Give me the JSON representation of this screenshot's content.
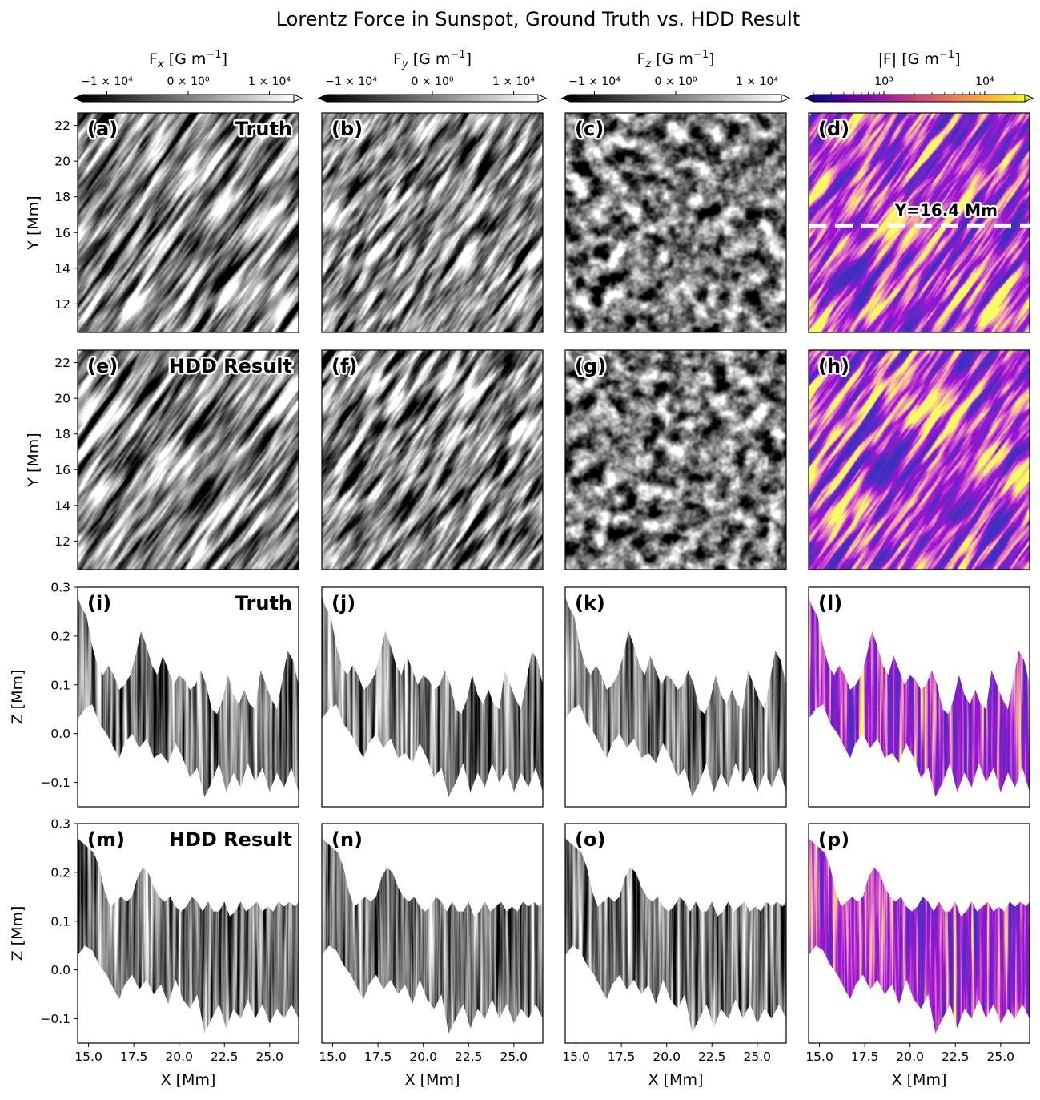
{
  "title": "Lorentz Force in Sunspot, Ground Truth vs. HDD Result",
  "colorbars": [
    {
      "label": "F",
      "sub": "x",
      "unit": " [G m",
      "exp": "−1",
      "close": "]",
      "scale": "gray",
      "ticks": [
        "−1 × 10⁴",
        "0 × 10⁰",
        "1 × 10⁴"
      ]
    },
    {
      "label": "F",
      "sub": "y",
      "unit": " [G m",
      "exp": "−1",
      "close": "]",
      "scale": "gray",
      "ticks": [
        "−1 × 10⁴",
        "0 × 10⁰",
        "1 × 10⁴"
      ]
    },
    {
      "label": "F",
      "sub": "z",
      "unit": " [G m",
      "exp": "−1",
      "close": "]",
      "scale": "gray",
      "ticks": [
        "−1 × 10⁴",
        "0 × 10⁰",
        "1 × 10⁴"
      ]
    },
    {
      "label": "|F|",
      "sub": "",
      "unit": " [G m",
      "exp": "−1",
      "close": "]",
      "scale": "plasma-log",
      "ticks": [
        "10³",
        "10⁴"
      ]
    }
  ],
  "colors": {
    "gray_dark": "#000000",
    "gray_light": "#ffffff",
    "plasma": [
      "#0d0887",
      "#5c01a6",
      "#9c179e",
      "#cc4778",
      "#ed7953",
      "#fdb42f",
      "#f0f921"
    ],
    "dashed_line": "#ffffff"
  },
  "panels": {
    "row_labels": [
      "Truth",
      "HDD Result",
      "Truth",
      "HDD Result"
    ],
    "letters": [
      [
        "(a)",
        "(b)",
        "(c)",
        "(d)"
      ],
      [
        "(e)",
        "(f)",
        "(g)",
        "(h)"
      ],
      [
        "(i)",
        "(j)",
        "(k)",
        "(l)"
      ],
      [
        "(m)",
        "(n)",
        "(o)",
        "(p)"
      ]
    ],
    "annotation": "Y=16.4 Mm"
  },
  "axes": {
    "xlabel": "X [Mm]",
    "ylabel_top": "Y [Mm]",
    "ylabel_bottom": "Z [Mm]",
    "xticks": [
      "15.0",
      "17.5",
      "20.0",
      "22.5",
      "25.0"
    ],
    "yticks_top": [
      "12",
      "14",
      "16",
      "18",
      "20",
      "22"
    ],
    "yticks_bottom": [
      "−0.1",
      "0.0",
      "0.1",
      "0.2",
      "0.3"
    ]
  },
  "chart_data": {
    "type": "heatmap",
    "x_range": [
      14.4,
      26.6
    ],
    "y_range": [
      10.4,
      22.7
    ],
    "z_range": [
      -0.15,
      0.3
    ],
    "slice_y": 16.4,
    "colorbar_gray_range": [
      -13000,
      13000
    ],
    "colorbar_log_range": [
      200,
      25000
    ],
    "surface_truth": [
      [
        14.4,
        0.28
      ],
      [
        14.6,
        0.26
      ],
      [
        14.9,
        0.24
      ],
      [
        15.2,
        0.18
      ],
      [
        15.5,
        0.14
      ],
      [
        15.8,
        0.12
      ],
      [
        16.1,
        0.14
      ],
      [
        16.4,
        0.12
      ],
      [
        16.7,
        0.09
      ],
      [
        17.0,
        0.1
      ],
      [
        17.3,
        0.12
      ],
      [
        17.6,
        0.16
      ],
      [
        17.9,
        0.21
      ],
      [
        18.2,
        0.18
      ],
      [
        18.5,
        0.14
      ],
      [
        18.8,
        0.12
      ],
      [
        19.1,
        0.16
      ],
      [
        19.4,
        0.13
      ],
      [
        19.7,
        0.1
      ],
      [
        20.0,
        0.12
      ],
      [
        20.3,
        0.11
      ],
      [
        20.6,
        0.09
      ],
      [
        20.9,
        0.1
      ],
      [
        21.2,
        0.13
      ],
      [
        21.5,
        0.1
      ],
      [
        21.8,
        0.05
      ],
      [
        22.1,
        0.04
      ],
      [
        22.4,
        0.07
      ],
      [
        22.7,
        0.12
      ],
      [
        23.0,
        0.08
      ],
      [
        23.3,
        0.06
      ],
      [
        23.6,
        0.09
      ],
      [
        23.9,
        0.06
      ],
      [
        24.2,
        0.05
      ],
      [
        24.5,
        0.13
      ],
      [
        24.8,
        0.1
      ],
      [
        25.1,
        0.07
      ],
      [
        25.4,
        0.05
      ],
      [
        25.7,
        0.11
      ],
      [
        26.0,
        0.17
      ],
      [
        26.3,
        0.15
      ],
      [
        26.6,
        0.1
      ]
    ],
    "bottom_truth": [
      [
        14.4,
        0.03
      ],
      [
        14.8,
        0.05
      ],
      [
        15.2,
        0.06
      ],
      [
        15.6,
        0.02
      ],
      [
        16.0,
        0.0
      ],
      [
        16.4,
        -0.03
      ],
      [
        16.7,
        -0.05
      ],
      [
        17.0,
        -0.02
      ],
      [
        17.4,
        0.0
      ],
      [
        17.8,
        -0.03
      ],
      [
        18.2,
        -0.01
      ],
      [
        18.6,
        -0.05
      ],
      [
        19.0,
        -0.04
      ],
      [
        19.4,
        -0.06
      ],
      [
        19.8,
        -0.02
      ],
      [
        20.2,
        -0.05
      ],
      [
        20.6,
        -0.09
      ],
      [
        21.0,
        -0.07
      ],
      [
        21.4,
        -0.13
      ],
      [
        21.8,
        -0.1
      ],
      [
        22.2,
        -0.06
      ],
      [
        22.6,
        -0.12
      ],
      [
        23.0,
        -0.08
      ],
      [
        23.4,
        -0.11
      ],
      [
        23.8,
        -0.06
      ],
      [
        24.2,
        -0.1
      ],
      [
        24.6,
        -0.07
      ],
      [
        25.0,
        -0.12
      ],
      [
        25.4,
        -0.08
      ],
      [
        25.8,
        -0.11
      ],
      [
        26.2,
        -0.07
      ],
      [
        26.6,
        -0.12
      ]
    ],
    "surface_hdd": [
      [
        14.4,
        0.27
      ],
      [
        14.7,
        0.26
      ],
      [
        15.0,
        0.25
      ],
      [
        15.3,
        0.24
      ],
      [
        15.6,
        0.21
      ],
      [
        15.9,
        0.16
      ],
      [
        16.2,
        0.13
      ],
      [
        16.5,
        0.14
      ],
      [
        16.8,
        0.15
      ],
      [
        17.1,
        0.14
      ],
      [
        17.4,
        0.15
      ],
      [
        17.7,
        0.19
      ],
      [
        18.0,
        0.21
      ],
      [
        18.3,
        0.2
      ],
      [
        18.6,
        0.17
      ],
      [
        18.9,
        0.15
      ],
      [
        19.2,
        0.14
      ],
      [
        19.5,
        0.15
      ],
      [
        19.8,
        0.13
      ],
      [
        20.1,
        0.12
      ],
      [
        20.4,
        0.13
      ],
      [
        20.7,
        0.15
      ],
      [
        21.0,
        0.14
      ],
      [
        21.3,
        0.12
      ],
      [
        21.6,
        0.14
      ],
      [
        21.9,
        0.12
      ],
      [
        22.2,
        0.12
      ],
      [
        22.5,
        0.14
      ],
      [
        22.8,
        0.11
      ],
      [
        23.1,
        0.12
      ],
      [
        23.4,
        0.14
      ],
      [
        23.7,
        0.12
      ],
      [
        24.0,
        0.13
      ],
      [
        24.3,
        0.14
      ],
      [
        24.6,
        0.12
      ],
      [
        24.9,
        0.13
      ],
      [
        25.2,
        0.12
      ],
      [
        25.5,
        0.14
      ],
      [
        25.8,
        0.13
      ],
      [
        26.1,
        0.14
      ],
      [
        26.4,
        0.13
      ],
      [
        26.6,
        0.14
      ]
    ],
    "bottom_hdd": [
      [
        14.4,
        0.03
      ],
      [
        14.8,
        0.05
      ],
      [
        15.2,
        0.04
      ],
      [
        15.6,
        0.01
      ],
      [
        16.0,
        -0.01
      ],
      [
        16.4,
        -0.04
      ],
      [
        16.7,
        -0.06
      ],
      [
        17.0,
        -0.03
      ],
      [
        17.4,
        -0.01
      ],
      [
        17.8,
        -0.04
      ],
      [
        18.2,
        -0.02
      ],
      [
        18.6,
        -0.05
      ],
      [
        19.0,
        -0.03
      ],
      [
        19.4,
        -0.07
      ],
      [
        19.8,
        -0.02
      ],
      [
        20.2,
        -0.06
      ],
      [
        20.6,
        -0.08
      ],
      [
        21.0,
        -0.05
      ],
      [
        21.4,
        -0.13
      ],
      [
        21.8,
        -0.1
      ],
      [
        22.2,
        -0.07
      ],
      [
        22.6,
        -0.12
      ],
      [
        23.0,
        -0.08
      ],
      [
        23.4,
        -0.1
      ],
      [
        23.8,
        -0.06
      ],
      [
        24.2,
        -0.1
      ],
      [
        24.6,
        -0.07
      ],
      [
        25.0,
        -0.11
      ],
      [
        25.4,
        -0.08
      ],
      [
        25.8,
        -0.1
      ],
      [
        26.2,
        -0.07
      ],
      [
        26.6,
        -0.1
      ]
    ]
  }
}
